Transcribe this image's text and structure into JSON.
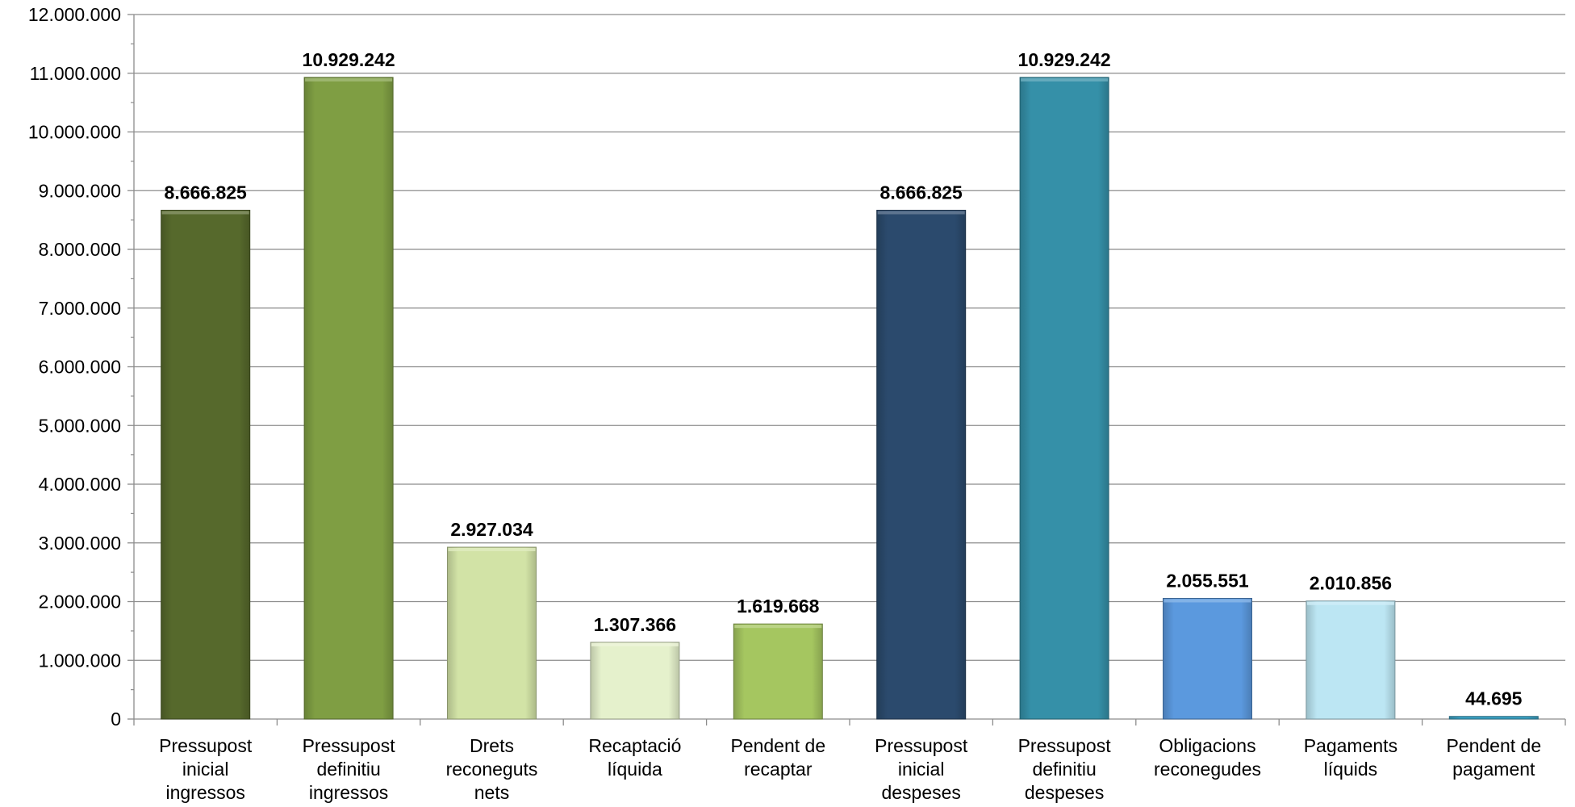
{
  "chart_data": {
    "type": "bar",
    "categories": [
      [
        "Pressupost",
        "inicial",
        "ingressos"
      ],
      [
        "Pressupost",
        "definitiu",
        "ingressos"
      ],
      [
        "Drets",
        "reconeguts",
        "nets"
      ],
      [
        "Recaptació",
        "líquida"
      ],
      [
        "Pendent de",
        "recaptar"
      ],
      [
        "Pressupost",
        "inicial",
        "despeses"
      ],
      [
        "Pressupost",
        "definitiu",
        "despeses"
      ],
      [
        "Obligacions",
        "reconegudes"
      ],
      [
        "Pagaments",
        "líquids"
      ],
      [
        "Pendent de",
        "pagament"
      ]
    ],
    "values": [
      8666825,
      10929242,
      2927034,
      1307366,
      1619668,
      8666825,
      10929242,
      2055551,
      2010856,
      44695
    ],
    "data_labels": [
      "8.666.825",
      "10.929.242",
      "2.927.034",
      "1.307.366",
      "1.619.668",
      "8.666.825",
      "10.929.242",
      "2.055.551",
      "2.010.856",
      "44.695"
    ],
    "colors": [
      "#56692c",
      "#7f9e43",
      "#d2e3a6",
      "#e5f1cc",
      "#a5c660",
      "#2b4a6d",
      "#3590a8",
      "#5b99de",
      "#bce6f3",
      "#3aa0c2"
    ],
    "y_tick_labels": [
      "0",
      "1.000.000",
      "2.000.000",
      "3.000.000",
      "4.000.000",
      "5.000.000",
      "6.000.000",
      "7.000.000",
      "8.000.000",
      "9.000.000",
      "10.000.000",
      "11.000.000",
      "12.000.000"
    ],
    "ylim": [
      0,
      12000000
    ],
    "y_major_step": 1000000,
    "title": "",
    "xlabel": "",
    "ylabel": "",
    "grid": true,
    "legend": "none"
  }
}
